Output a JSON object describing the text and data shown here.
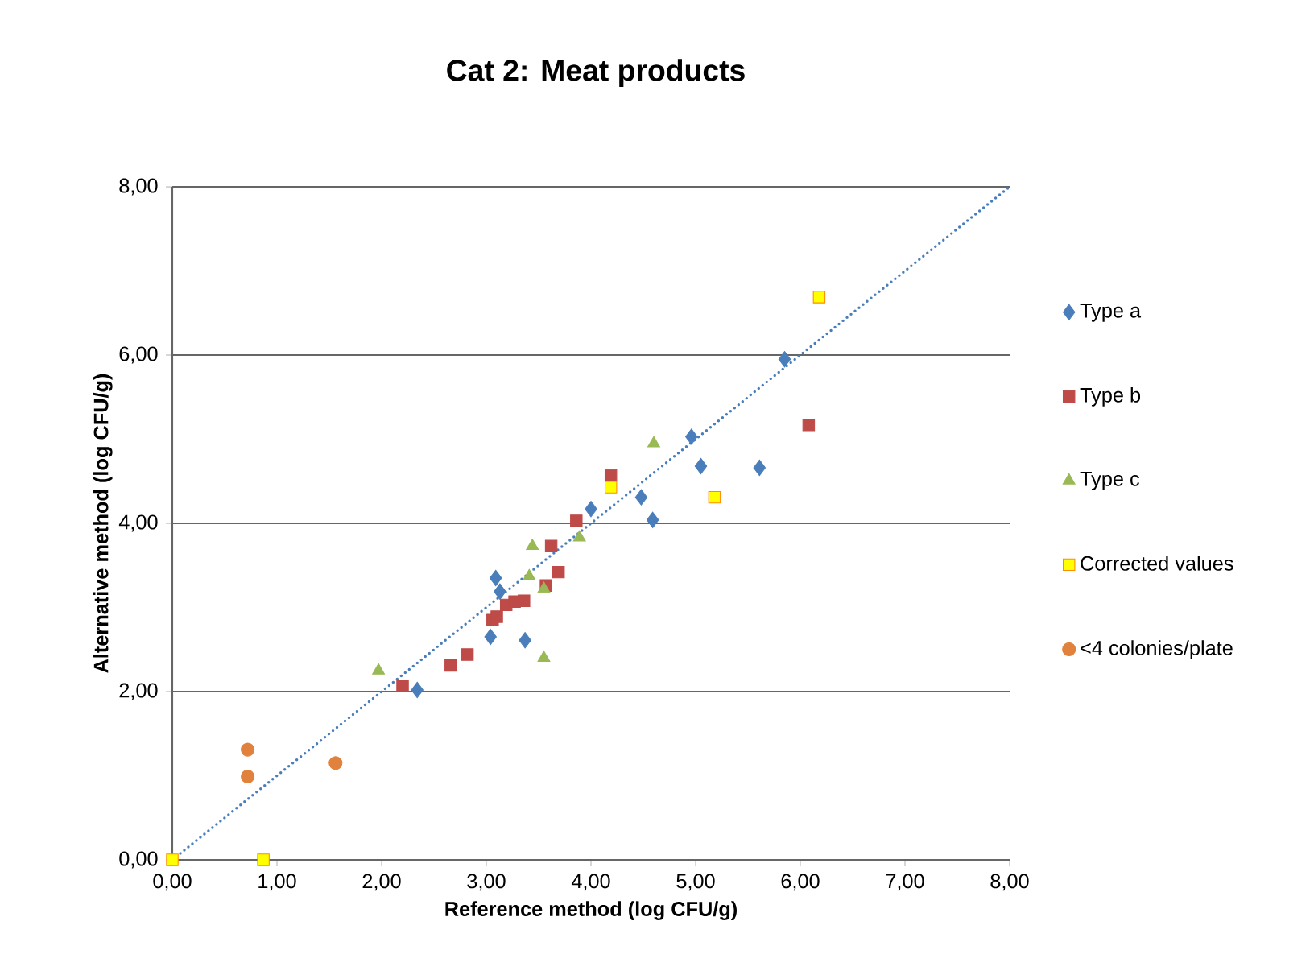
{
  "chart_data": {
    "type": "scatter",
    "title": "Cat 2: Meat products",
    "xlabel": "Reference method (log CFU/g)",
    "ylabel": "Alternative method (log CFU/g)",
    "xlim": [
      0,
      8
    ],
    "ylim": [
      0,
      8
    ],
    "xticks": [
      {
        "value": 0,
        "label": "0,00"
      },
      {
        "value": 1,
        "label": "1,00"
      },
      {
        "value": 2,
        "label": "2,00"
      },
      {
        "value": 3,
        "label": "3,00"
      },
      {
        "value": 4,
        "label": "4,00"
      },
      {
        "value": 5,
        "label": "5,00"
      },
      {
        "value": 6,
        "label": "6,00"
      },
      {
        "value": 7,
        "label": "7,00"
      },
      {
        "value": 8,
        "label": "8,00"
      }
    ],
    "yticks": [
      {
        "value": 0,
        "label": "0,00"
      },
      {
        "value": 2,
        "label": "2,00"
      },
      {
        "value": 4,
        "label": "4,00"
      },
      {
        "value": 6,
        "label": "6,00"
      },
      {
        "value": 8,
        "label": "8,00"
      }
    ],
    "grid": "y",
    "legend": "right",
    "series": [
      {
        "name": "Type a",
        "color": "#4a7ebb",
        "marker": "diamond",
        "x": [
          2.34,
          3.04,
          3.09,
          3.13,
          3.37,
          4.0,
          4.48,
          4.59,
          4.96,
          5.05,
          5.61,
          5.85
        ],
        "values": [
          2.02,
          2.65,
          3.35,
          3.19,
          2.61,
          4.17,
          4.31,
          4.04,
          5.03,
          4.68,
          4.66,
          5.95
        ]
      },
      {
        "name": "Type b",
        "color": "#be4b48",
        "marker": "square",
        "x": [
          2.2,
          2.66,
          2.82,
          3.06,
          3.1,
          3.19,
          3.27,
          3.36,
          3.57,
          3.69,
          3.62,
          3.86,
          4.19,
          6.08
        ],
        "values": [
          2.07,
          2.31,
          2.44,
          2.85,
          2.89,
          3.03,
          3.07,
          3.08,
          3.26,
          3.42,
          3.73,
          4.03,
          4.57,
          5.17
        ]
      },
      {
        "name": "Type c",
        "color": "#98b954",
        "marker": "triangle",
        "x": [
          1.97,
          3.44,
          3.41,
          3.55,
          3.55,
          3.89,
          4.6
        ],
        "values": [
          2.25,
          3.73,
          3.37,
          3.22,
          2.4,
          3.83,
          4.95
        ]
      },
      {
        "name": "Corrected values",
        "color": "#ffff00",
        "marker": "square",
        "x": [
          0,
          0.87,
          4.19,
          5.18,
          6.18
        ],
        "values": [
          0,
          0,
          4.43,
          4.31,
          6.69
        ]
      },
      {
        "name": "<4 colonies/plate",
        "color": "#e0823d",
        "marker": "circle",
        "x": [
          0.72,
          0.72,
          1.56
        ],
        "values": [
          1.31,
          0.99,
          1.15
        ]
      },
      {
        "type": "line",
        "color": "#4a7ebb",
        "marker": "none",
        "line_style": "dotted",
        "x": [
          0,
          8
        ],
        "values": [
          0,
          8
        ]
      }
    ]
  }
}
